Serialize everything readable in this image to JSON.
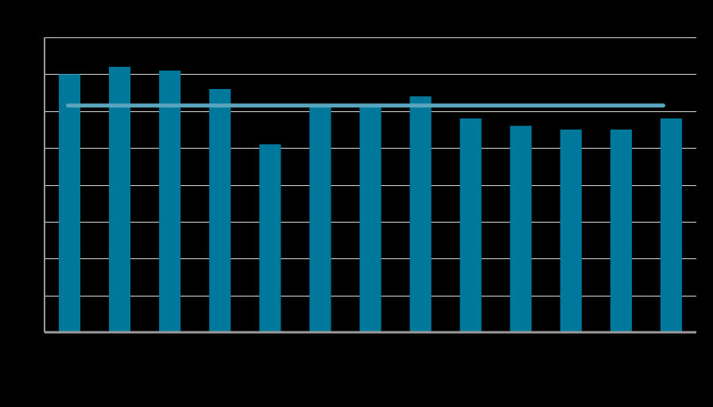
{
  "chart_data": {
    "type": "bar",
    "categories": [
      "",
      "",
      "",
      "",
      "",
      "",
      "",
      "",
      "",
      "",
      "",
      "",
      ""
    ],
    "series": [
      {
        "values": [
          70,
          72,
          71,
          66,
          51,
          62,
          62,
          64,
          58,
          56,
          55,
          55,
          58
        ]
      }
    ],
    "reference_line": {
      "value": 61.5
    },
    "ylim": [
      0,
      80
    ],
    "y_gridlines": [
      10,
      20,
      30,
      40,
      50,
      60,
      70,
      80
    ],
    "grid": true,
    "title": "",
    "xlabel": "",
    "ylabel": "",
    "colors": {
      "background": "#000000",
      "bar": "#00789c",
      "reference_line": "#5aa6bf",
      "gridline": "#d9d9d9",
      "axis": "#9a9a9a"
    }
  }
}
